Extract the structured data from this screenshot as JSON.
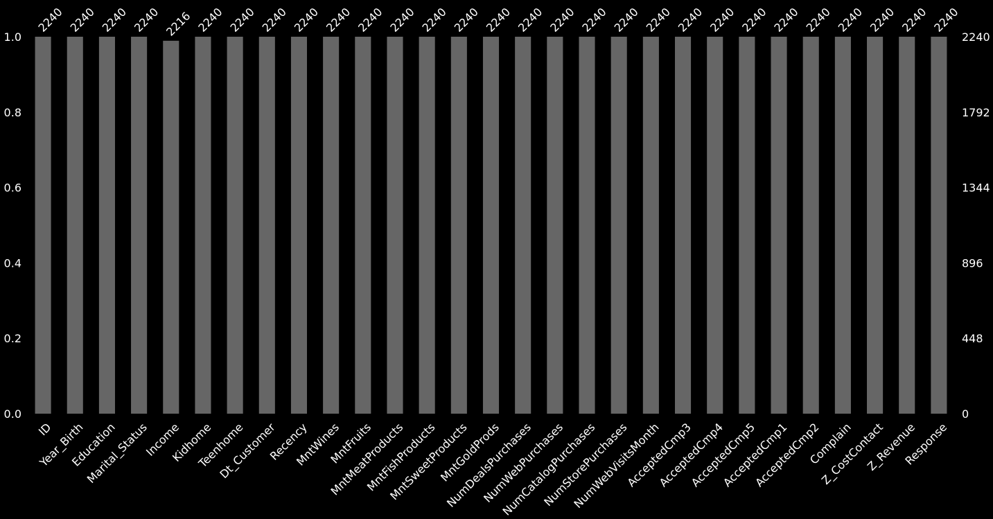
{
  "chart_data": {
    "type": "bar",
    "categories": [
      "ID",
      "Year_Birth",
      "Education",
      "Marital_Status",
      "Income",
      "Kidhome",
      "Teenhome",
      "Dt_Customer",
      "Recency",
      "MntWines",
      "MntFruits",
      "MntMeatProducts",
      "MntFishProducts",
      "MntSweetProducts",
      "MntGoldProds",
      "NumDealsPurchases",
      "NumWebPurchases",
      "NumCatalogPurchases",
      "NumStorePurchases",
      "NumWebVisitsMonth",
      "AcceptedCmp3",
      "AcceptedCmp4",
      "AcceptedCmp5",
      "AcceptedCmp1",
      "AcceptedCmp2",
      "Complain",
      "Z_CostContact",
      "Z_Revenue",
      "Response"
    ],
    "series": [
      {
        "color": "#666666",
        "axis": "y2",
        "values": [
          2240,
          2240,
          2240,
          2240,
          2216,
          2240,
          2240,
          2240,
          2240,
          2240,
          2240,
          2240,
          2240,
          2240,
          2240,
          2240,
          2240,
          2240,
          2240,
          2240,
          2240,
          2240,
          2240,
          2240,
          2240,
          2240,
          2240,
          2240,
          2240
        ]
      }
    ],
    "ylim": [
      0,
      1
    ],
    "yticks": [
      {
        "value": 0,
        "label": "0.0"
      },
      {
        "value": 0.2,
        "label": "0.2"
      },
      {
        "value": 0.4,
        "label": "0.4"
      },
      {
        "value": 0.6,
        "label": "0.6"
      },
      {
        "value": 0.8,
        "label": "0.8"
      },
      {
        "value": 1,
        "label": "1.0"
      }
    ],
    "y2lim": [
      0,
      2240
    ],
    "y2ticks": [
      0,
      448,
      896,
      1344,
      1792,
      2240
    ],
    "grid": false
  }
}
